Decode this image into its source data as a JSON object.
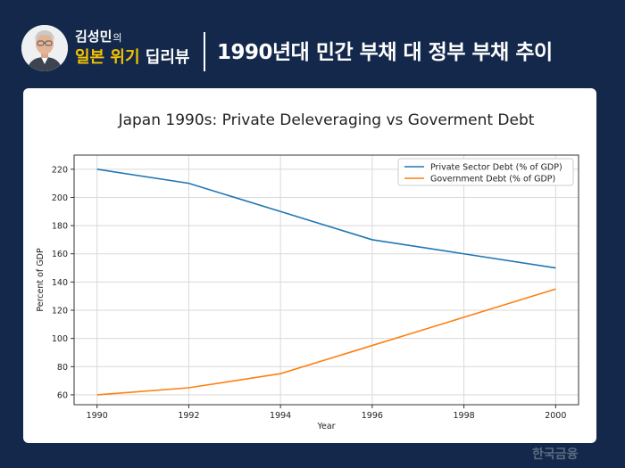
{
  "header": {
    "show_name": "김성민",
    "show_name_suffix": "의",
    "show_sub_highlight": "일본 위기",
    "show_sub_rest": "딥리뷰",
    "episode_title": "1990년대 민간 부채 대 정부 부채 추이"
  },
  "brand": {
    "name": "한국금융"
  },
  "colors": {
    "background": "#13284a",
    "accent": "#f5c300",
    "series1": "#1f77b4",
    "series2": "#ff7f0e"
  },
  "chart_data": {
    "type": "line",
    "title": "Japan 1990s: Private Deleveraging vs Goverment Debt",
    "xlabel": "Year",
    "ylabel": "Percent of GDP",
    "x": [
      1990,
      1992,
      1994,
      1996,
      1998,
      2000
    ],
    "xlim": [
      1989.5,
      2000.5
    ],
    "ylim": [
      53,
      230
    ],
    "xticks": [
      1990,
      1992,
      1994,
      1996,
      1998,
      2000
    ],
    "yticks": [
      60,
      80,
      100,
      120,
      140,
      160,
      180,
      200,
      220
    ],
    "grid": true,
    "legend": "top-right",
    "series": [
      {
        "name": "Private Sector Debt (% of GDP)",
        "color": "#1f77b4",
        "values": [
          220,
          210,
          190,
          170,
          160,
          150
        ]
      },
      {
        "name": "Government Debt (% of GDP)",
        "color": "#ff7f0e",
        "values": [
          60,
          65,
          75,
          95,
          115,
          135
        ]
      }
    ]
  }
}
